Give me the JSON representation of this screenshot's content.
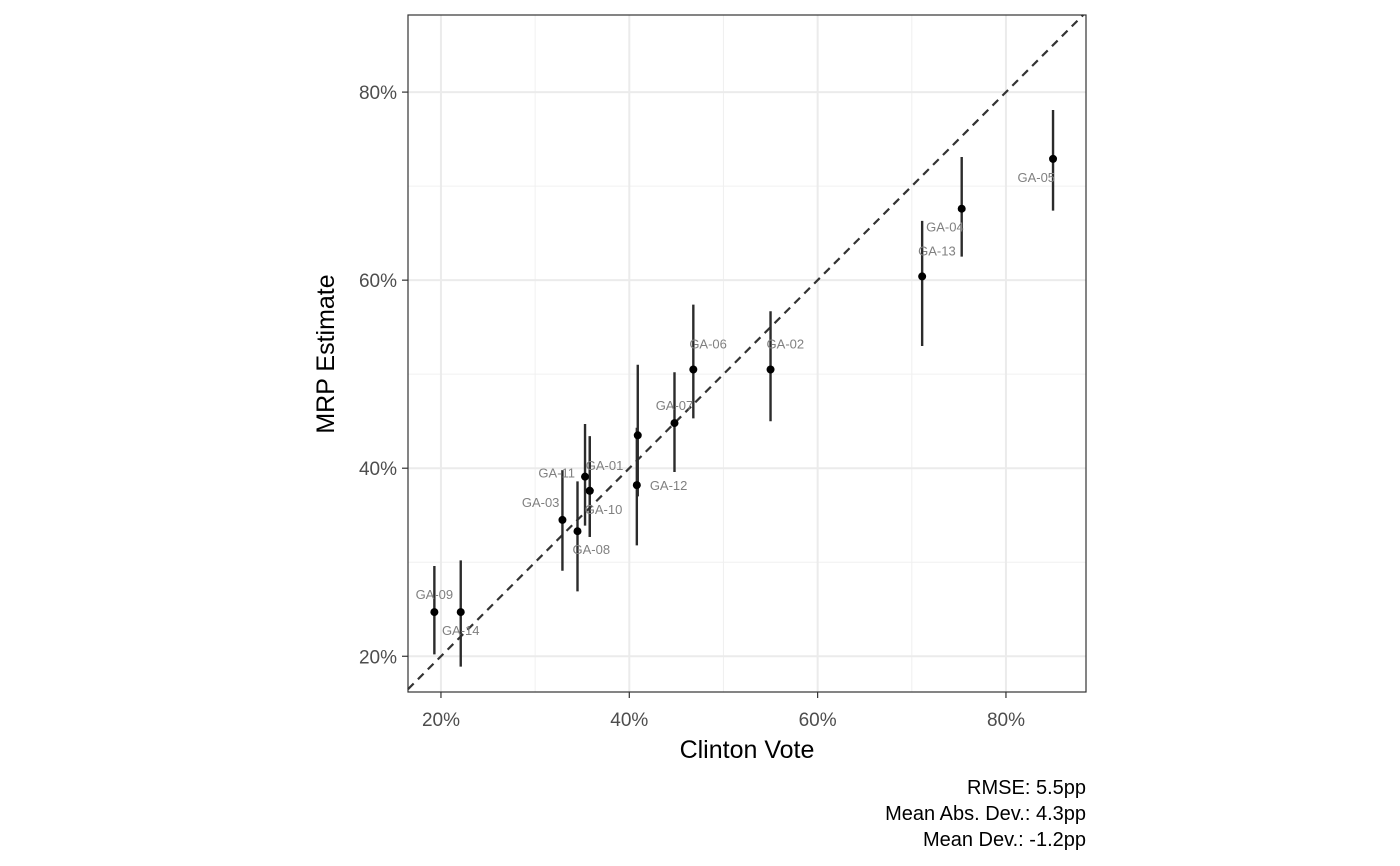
{
  "chart_data": {
    "type": "scatter",
    "xlabel": "Clinton Vote",
    "ylabel": "MRP Estimate",
    "xlim": [
      16.5,
      88.5
    ],
    "ylim": [
      16.2,
      88.2
    ],
    "x_ticks": [
      20,
      40,
      60,
      80
    ],
    "y_ticks": [
      20,
      40,
      60,
      80
    ],
    "x_tick_labels": [
      "20%",
      "40%",
      "60%",
      "80%"
    ],
    "y_tick_labels": [
      "20%",
      "40%",
      "60%",
      "80%"
    ],
    "grid": true,
    "reference_line": "y = x (dashed)",
    "points": [
      {
        "label": "GA-09",
        "x": 19.3,
        "y": 24.7,
        "lo": 20.2,
        "hi": 29.6,
        "label_pos": "above"
      },
      {
        "label": "GA-14",
        "x": 22.1,
        "y": 24.7,
        "lo": 18.9,
        "hi": 30.2,
        "label_pos": "below"
      },
      {
        "label": "GA-03",
        "x": 32.9,
        "y": 34.5,
        "lo": 29.1,
        "hi": 39.8,
        "label_pos": "above-left"
      },
      {
        "label": "GA-08",
        "x": 34.5,
        "y": 33.3,
        "lo": 26.9,
        "hi": 38.6,
        "label_pos": "below-right"
      },
      {
        "label": "GA-11",
        "x": 35.3,
        "y": 39.1,
        "lo": 33.9,
        "hi": 44.7,
        "label_pos": "left"
      },
      {
        "label": "GA-01",
        "x": 35.8,
        "y": 37.6,
        "lo": 32.7,
        "hi": 43.4,
        "label_pos": "above-right"
      },
      {
        "label": "GA-10",
        "x": 35.8,
        "y": 37.6,
        "lo": 32.7,
        "hi": 43.4,
        "label_pos": "below-right"
      },
      {
        "label": "GA-12",
        "x": 40.8,
        "y": 38.2,
        "lo": 31.8,
        "hi": 44.3,
        "label_pos": "right"
      },
      {
        "label": "GA-07",
        "x": 40.9,
        "y": 43.5,
        "lo": 37.0,
        "hi": 51.0,
        "label_pos": "none"
      },
      {
        "label": "GA-07",
        "x": 44.8,
        "y": 44.8,
        "lo": 39.6,
        "hi": 50.2,
        "label_pos": "above"
      },
      {
        "label": "GA-06",
        "x": 46.8,
        "y": 50.5,
        "lo": 45.3,
        "hi": 57.4,
        "label_pos": "above-right"
      },
      {
        "label": "GA-02",
        "x": 55.0,
        "y": 50.5,
        "lo": 45.0,
        "hi": 56.7,
        "label_pos": "above-right"
      },
      {
        "label": "GA-13",
        "x": 71.1,
        "y": 60.4,
        "lo": 53.0,
        "hi": 66.3,
        "label_pos": "above-right"
      },
      {
        "label": "GA-04",
        "x": 75.3,
        "y": 67.6,
        "lo": 62.5,
        "hi": 73.1,
        "label_pos": "below-left"
      },
      {
        "label": "GA-05",
        "x": 85.0,
        "y": 72.9,
        "lo": 67.4,
        "hi": 78.1,
        "label_pos": "below-left"
      }
    ]
  },
  "caption": {
    "rmse": "RMSE: 5.5pp",
    "mad": "Mean Abs. Dev.: 4.3pp",
    "md": "Mean Dev.: -1.2pp"
  }
}
